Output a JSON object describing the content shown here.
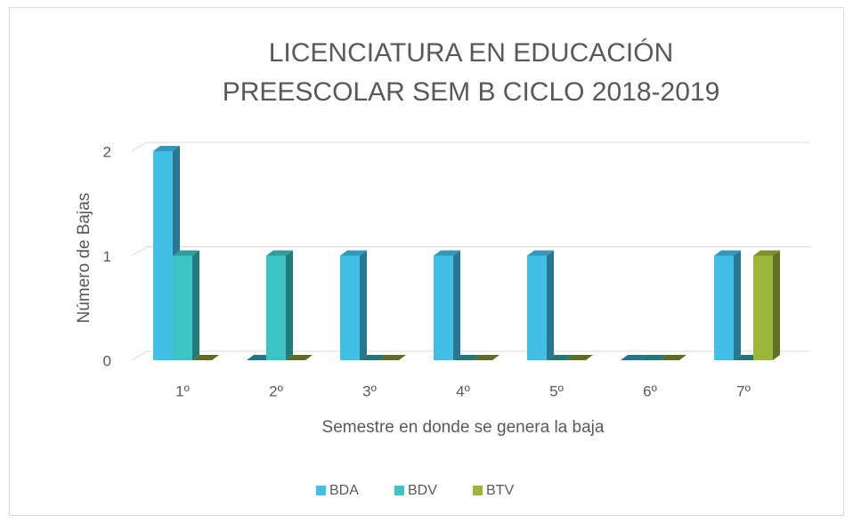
{
  "chart_data": {
    "type": "bar3d",
    "title": "LICENCIATURA EN EDUCACIÓN  PREESCOLAR SEM B CICLO 2018-2019",
    "xlabel": "Semestre en donde se genera la baja",
    "ylabel": "Número de Bajas",
    "categories": [
      "1º",
      "2º",
      "3º",
      "4º",
      "5º",
      "6º",
      "7º"
    ],
    "series": [
      {
        "name": "BDA",
        "color": "#41bfe6",
        "values": [
          2,
          0,
          1,
          1,
          1,
          0,
          1
        ]
      },
      {
        "name": "BDV",
        "color": "#3cc4c4",
        "values": [
          1,
          1,
          0,
          0,
          0,
          0,
          0
        ]
      },
      {
        "name": "BTV",
        "color": "#9ab73c",
        "values": [
          0,
          0,
          0,
          0,
          0,
          0,
          1
        ]
      }
    ],
    "ylim": [
      0,
      2
    ],
    "yticks": [
      0,
      1,
      2
    ],
    "grid": true,
    "legend": "bottom"
  }
}
